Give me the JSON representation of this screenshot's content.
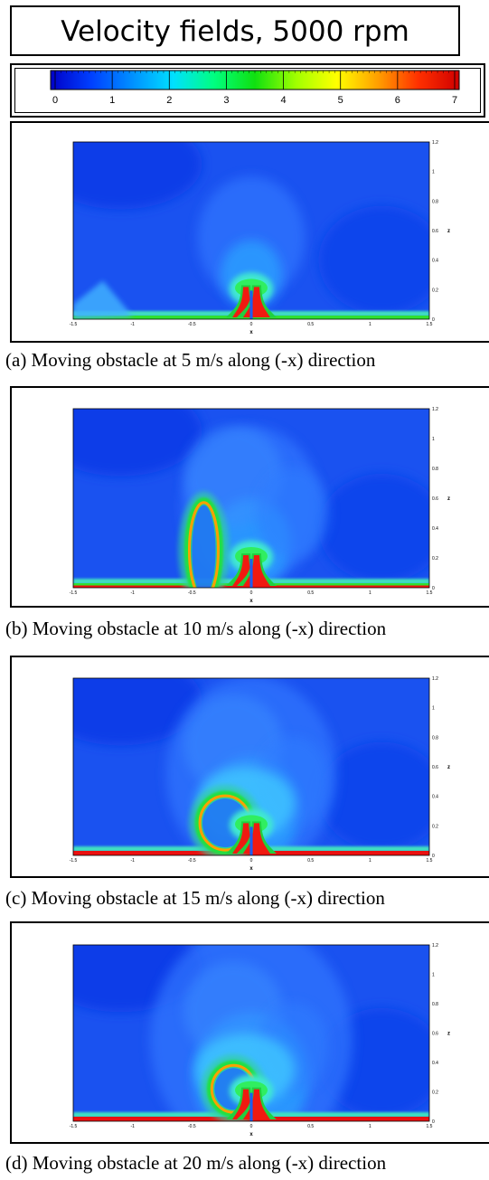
{
  "title": "Velocity fields, 5000 rpm",
  "colorbar": {
    "ticks": [
      "0",
      "1",
      "2",
      "3",
      "4",
      "5",
      "6",
      "7"
    ],
    "min": 0,
    "max": 7,
    "colors": [
      "#0000c8",
      "#0040ff",
      "#0090ff",
      "#00e0ff",
      "#00ff80",
      "#10e010",
      "#a0ff00",
      "#ffff00",
      "#ffa000",
      "#ff3000",
      "#d00000"
    ]
  },
  "axes": {
    "x_label": "x",
    "z_label": "z",
    "x_ticks": [
      "-1.5",
      "-1",
      "-0.5",
      "0",
      "0.5",
      "1",
      "1.5"
    ],
    "z_ticks": [
      "0",
      "0.2",
      "0.4",
      "0.6",
      "0.8",
      "1",
      "1.2"
    ]
  },
  "panels": [
    {
      "caption": "(a) Moving obstacle at 5 m/s along (-x) direction",
      "speed_ms": 5
    },
    {
      "caption": "(b) Moving obstacle at 10 m/s along (-x) direction",
      "speed_ms": 10
    },
    {
      "caption": "(c) Moving obstacle at 15 m/s along (-x) direction",
      "speed_ms": 15
    },
    {
      "caption": "(d) Moving obstacle at 20 m/s along (-x) direction",
      "speed_ms": 20
    }
  ]
}
